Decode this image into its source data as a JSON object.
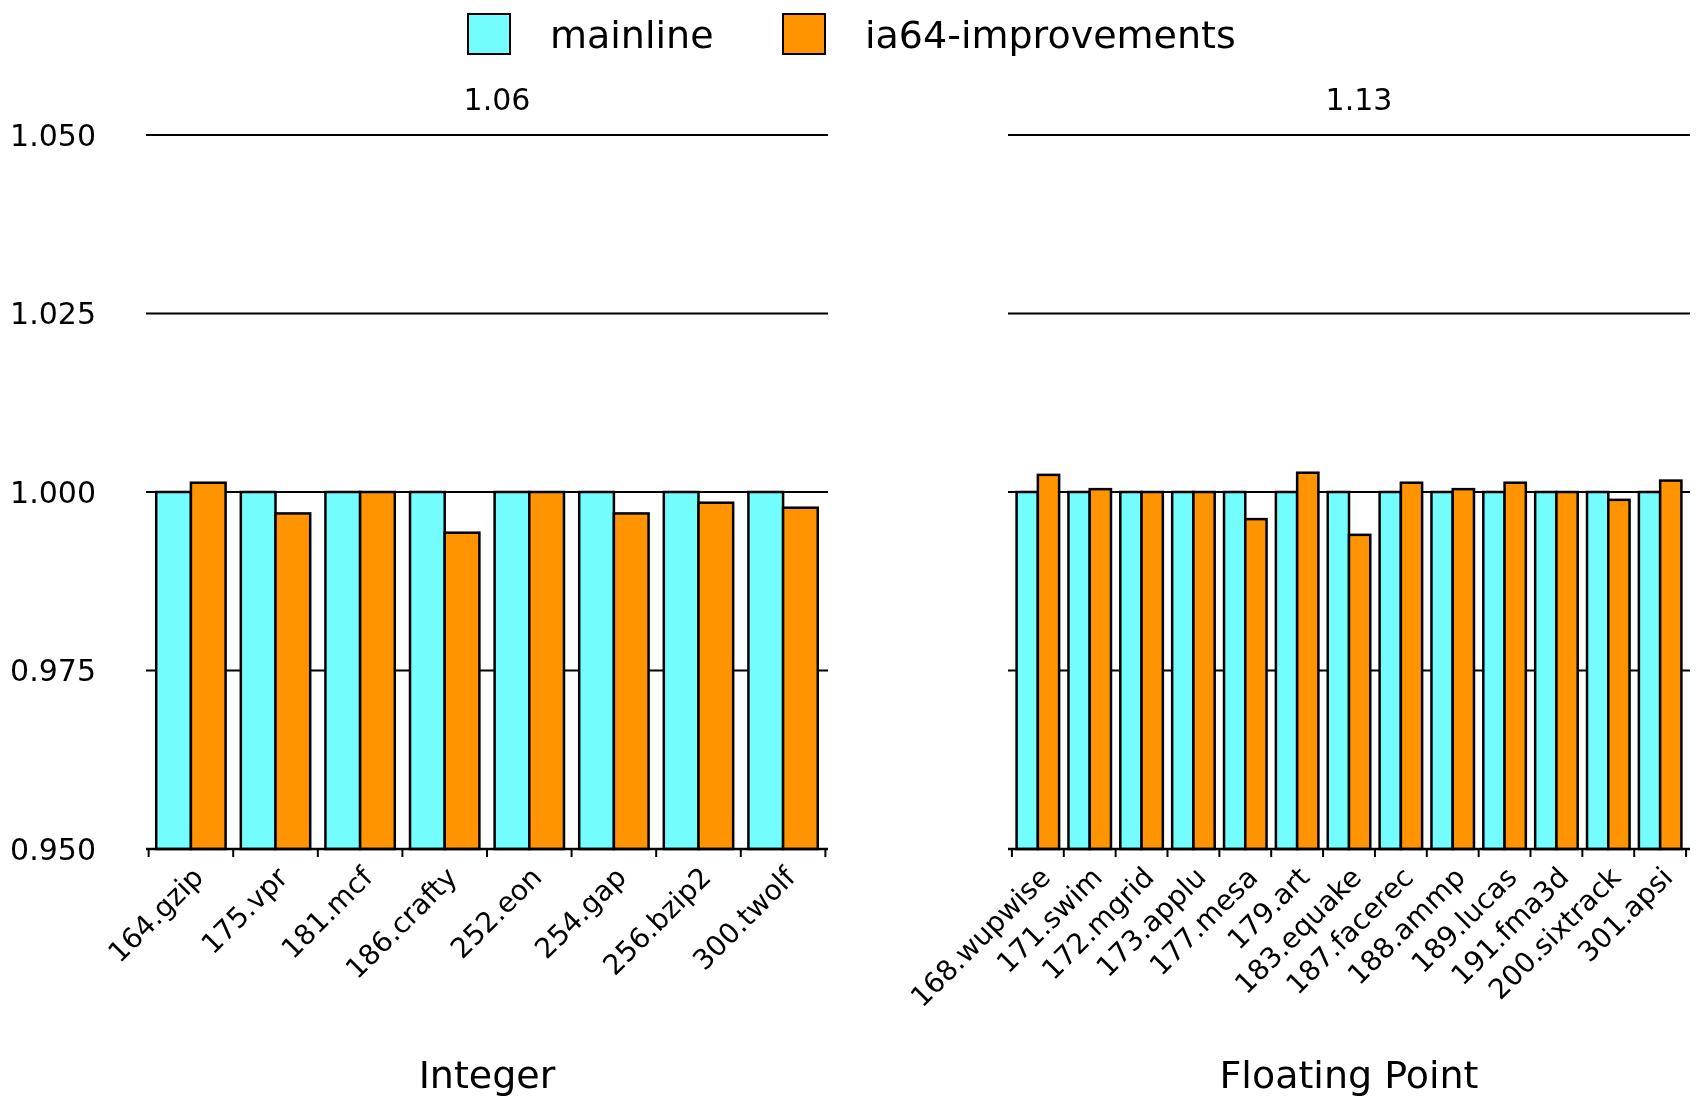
{
  "chart_data": [
    {
      "type": "bar",
      "xlabel": "Integer",
      "annotations": [
        "1.06"
      ],
      "categories": [
        "164.gzip",
        "175.vpr",
        "181.mcf",
        "186.crafty",
        "252.eon",
        "254.gap",
        "256.bzip2",
        "300.twolf"
      ],
      "series": [
        {
          "name": "mainline",
          "color": "#73fdff",
          "values": [
            1,
            1,
            1,
            1,
            1,
            1,
            1,
            1
          ]
        },
        {
          "name": "ia64-improvements",
          "color": "#ff9300",
          "values": [
            1.0013,
            0.997,
            1.0,
            0.9943,
            1.0,
            0.997,
            0.9985,
            0.9978
          ]
        }
      ],
      "ylim": [
        0.95,
        1.05
      ],
      "yticks": [
        {
          "value": 0.95,
          "label": "0.950"
        },
        {
          "value": 0.975,
          "label": "0.975"
        },
        {
          "value": 1.0,
          "label": "1.000"
        },
        {
          "value": 1.025,
          "label": "1.025"
        },
        {
          "value": 1.05,
          "label": "1.050"
        }
      ],
      "grid": "y",
      "legend": "top"
    },
    {
      "type": "bar",
      "xlabel": "Floating Point",
      "annotations": [
        "1.13"
      ],
      "categories": [
        "168.wupwise",
        "171.swim",
        "172.mgrid",
        "173.applu",
        "177.mesa",
        "179.art",
        "183.equake",
        "187.facerec",
        "188.ammp",
        "189.lucas",
        "191.fma3d",
        "200.sixtrack",
        "301.apsi"
      ],
      "series": [
        {
          "color": "#73fdff",
          "values": [
            1,
            1,
            1,
            1,
            1,
            1,
            1,
            1,
            1,
            1,
            1,
            1,
            1
          ]
        },
        {
          "color": "#ff9300",
          "values": [
            1.0024,
            1.0004,
            1.0,
            1.0,
            0.9962,
            1.0027,
            0.994,
            1.0013,
            1.0004,
            1.0013,
            1.0,
            0.9989,
            1.0016
          ]
        }
      ],
      "ylim": [
        0.95,
        1.05
      ],
      "yticks": [
        {
          "value": 0.95,
          "label": null
        },
        {
          "value": 0.975,
          "label": null
        },
        {
          "value": 1.0,
          "label": null
        },
        {
          "value": 1.025,
          "label": null
        },
        {
          "value": 1.05,
          "label": null
        }
      ],
      "grid": "y",
      "tick_labels": "x"
    }
  ]
}
